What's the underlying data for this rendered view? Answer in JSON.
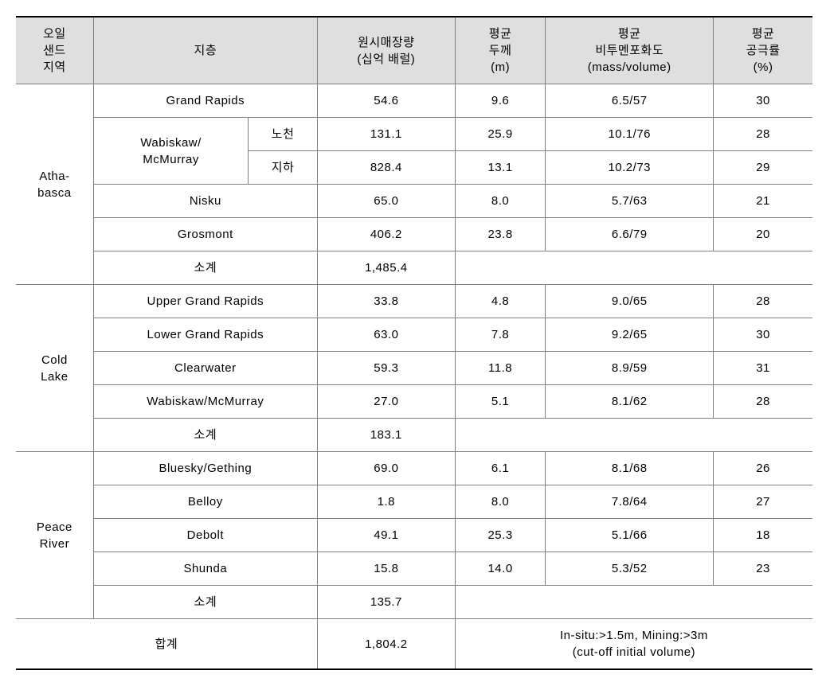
{
  "header": {
    "col1": "오일\n샌드\n지역",
    "col2": "지층",
    "col3": "원시매장량\n(십억 배럴)",
    "col4": "평균\n두께\n(m)",
    "col5": "평균\n비투멘포화도\n(mass/volume)",
    "col6": "평균\n공극률\n(%)"
  },
  "regions": {
    "athabasca": {
      "name": "Atha-\nbasca",
      "rows": [
        {
          "formation": "Grand Rapids",
          "reserve": "54.6",
          "thickness": "9.6",
          "saturation": "6.5/57",
          "porosity": "30"
        },
        {
          "formationMain": "Wabiskaw/\nMcMurray",
          "sub": "노천",
          "reserve": "131.1",
          "thickness": "25.9",
          "saturation": "10.1/76",
          "porosity": "28"
        },
        {
          "sub": "지하",
          "reserve": "828.4",
          "thickness": "13.1",
          "saturation": "10.2/73",
          "porosity": "29"
        },
        {
          "formation": "Nisku",
          "reserve": "65.0",
          "thickness": "8.0",
          "saturation": "5.7/63",
          "porosity": "21"
        },
        {
          "formation": "Grosmont",
          "reserve": "406.2",
          "thickness": "23.8",
          "saturation": "6.6/79",
          "porosity": "20"
        },
        {
          "formation": "소계",
          "reserve": "1,485.4"
        }
      ]
    },
    "coldlake": {
      "name": "Cold\nLake",
      "rows": [
        {
          "formation": "Upper Grand Rapids",
          "reserve": "33.8",
          "thickness": "4.8",
          "saturation": "9.0/65",
          "porosity": "28"
        },
        {
          "formation": "Lower Grand Rapids",
          "reserve": "63.0",
          "thickness": "7.8",
          "saturation": "9.2/65",
          "porosity": "30"
        },
        {
          "formation": "Clearwater",
          "reserve": "59.3",
          "thickness": "11.8",
          "saturation": "8.9/59",
          "porosity": "31"
        },
        {
          "formation": "Wabiskaw/McMurray",
          "reserve": "27.0",
          "thickness": "5.1",
          "saturation": "8.1/62",
          "porosity": "28"
        },
        {
          "formation": "소계",
          "reserve": "183.1"
        }
      ]
    },
    "peaceriver": {
      "name": "Peace\nRiver",
      "rows": [
        {
          "formation": "Bluesky/Gething",
          "reserve": "69.0",
          "thickness": "6.1",
          "saturation": "8.1/68",
          "porosity": "26"
        },
        {
          "formation": "Belloy",
          "reserve": "1.8",
          "thickness": "8.0",
          "saturation": "7.8/64",
          "porosity": "27"
        },
        {
          "formation": "Debolt",
          "reserve": "49.1",
          "thickness": "25.3",
          "saturation": "5.1/66",
          "porosity": "18"
        },
        {
          "formation": "Shunda",
          "reserve": "15.8",
          "thickness": "14.0",
          "saturation": "5.3/52",
          "porosity": "23"
        },
        {
          "formation": "소계",
          "reserve": "135.7"
        }
      ]
    }
  },
  "total": {
    "label": "합계",
    "reserve": "1,804.2",
    "note": "In-situ:>1.5m, Mining:>3m\n(cut-off initial volume)"
  },
  "style": {
    "header_bg": "#dfdfdf",
    "border_color": "#808080",
    "thick_border_color": "#000000",
    "font_size": 15,
    "cell_padding": "10px 6px"
  }
}
